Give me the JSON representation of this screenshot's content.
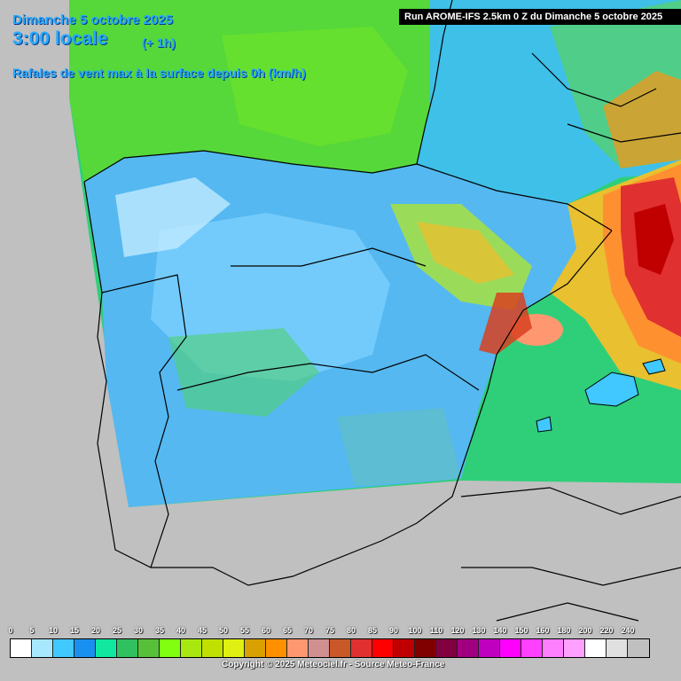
{
  "header": {
    "date": "Dimanche 5 octobre 2025",
    "time": "3:00 locale",
    "offset": "(+ 1h)",
    "parameter": "Rafales de vent max à la surface depuis 0h (km/h)"
  },
  "run_banner": "Run AROME-IFS 2.5km 0 Z du Dimanche 5 octobre 2025",
  "credit": "Copyright © 2025 Meteociel.fr - Source Meteo-France",
  "legend": {
    "unit": "km/h",
    "labels": [
      "0",
      "5",
      "10",
      "15",
      "20",
      "25",
      "30",
      "35",
      "40",
      "45",
      "50",
      "55",
      "60",
      "65",
      "70",
      "75",
      "80",
      "85",
      "90",
      "100",
      "110",
      "120",
      "130",
      "140",
      "150",
      "160",
      "180",
      "200",
      "220",
      "240"
    ],
    "colors": [
      "#ffffff",
      "#a8e8ff",
      "#40c8ff",
      "#1890f0",
      "#10e8a0",
      "#30c060",
      "#58c038",
      "#80ff10",
      "#a8e810",
      "#c0e000",
      "#e0f010",
      "#d8a000",
      "#ff9000",
      "#ff9870",
      "#d09090",
      "#c85828",
      "#e03030",
      "#ff0000",
      "#c00000",
      "#800000",
      "#800040",
      "#a00080",
      "#c000c0",
      "#ff00ff",
      "#ff40ff",
      "#ff80ff",
      "#ffa0ff",
      "#ffffff",
      "#e0e0e0",
      "#c0c0c0"
    ]
  },
  "map": {
    "colors": {
      "land_outside": "#c0c0c0",
      "atlantic_model": "#4cd040",
      "med_model": "#30c078",
      "plateau_calm": "#70c8ff",
      "storm_core": "#e00000",
      "border_lines": "#000000"
    }
  }
}
